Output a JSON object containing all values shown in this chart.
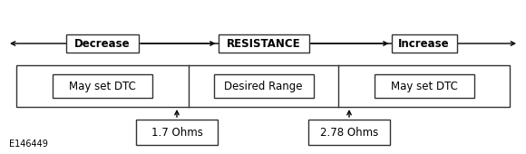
{
  "bg_color": "#ffffff",
  "text_color": "#000000",
  "box_edge_color": "#333333",
  "label_1_7": "1.7 Ohms",
  "label_2_78": "2.78 Ohms",
  "label_may_dtc_left": "May set DTC",
  "label_desired": "Desired Range",
  "label_may_dtc_right": "May set DTC",
  "label_decrease": "Decrease",
  "label_resistance": "RESISTANCE",
  "label_increase": "Increase",
  "label_ref": "E146449",
  "fig_width": 5.8,
  "fig_height": 1.7,
  "dpi": 100
}
